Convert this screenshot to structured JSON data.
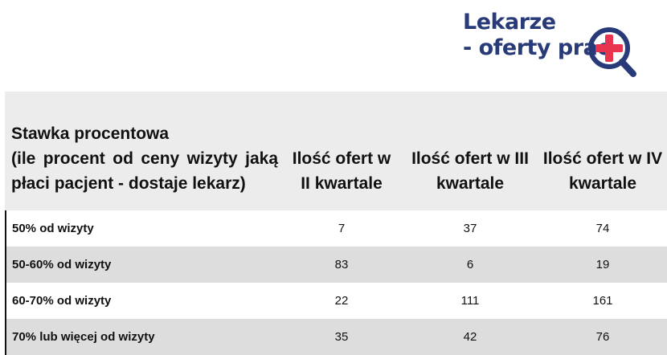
{
  "logo": {
    "line1": "Lekarze",
    "line2": "- oferty prac",
    "icon": "magnifier-plus-icon",
    "colors": {
      "text": "#283a78",
      "accent": "#e8344e"
    }
  },
  "table": {
    "headers": {
      "col0": {
        "line1": "Stawka procentowa",
        "line2": "(ile procent od ceny wizyty jaką",
        "line3": "płaci pacjent - dostaje lekarz)"
      },
      "col1": {
        "line1": "Ilość ofert w",
        "line2": "II kwartale"
      },
      "col2": {
        "line1": "Ilość ofert w III",
        "line2": "kwartale"
      },
      "col3": {
        "line1": "Ilość ofert w IV",
        "line2": "kwartale"
      }
    },
    "rows": [
      {
        "label": "50% od wizyty",
        "q2": "7",
        "q3": "37",
        "q4": "74"
      },
      {
        "label": "50-60% od wizyty",
        "q2": "83",
        "q3": "6",
        "q4": "19"
      },
      {
        "label": "60-70% od wizyty",
        "q2": "22",
        "q3": "111",
        "q4": "161"
      },
      {
        "label": "70% lub więcej od wizyty",
        "q2": "35",
        "q3": "42",
        "q4": "76"
      }
    ],
    "colors": {
      "header_bg": "#ececec",
      "alt_row_bg": "#dddddd"
    }
  }
}
